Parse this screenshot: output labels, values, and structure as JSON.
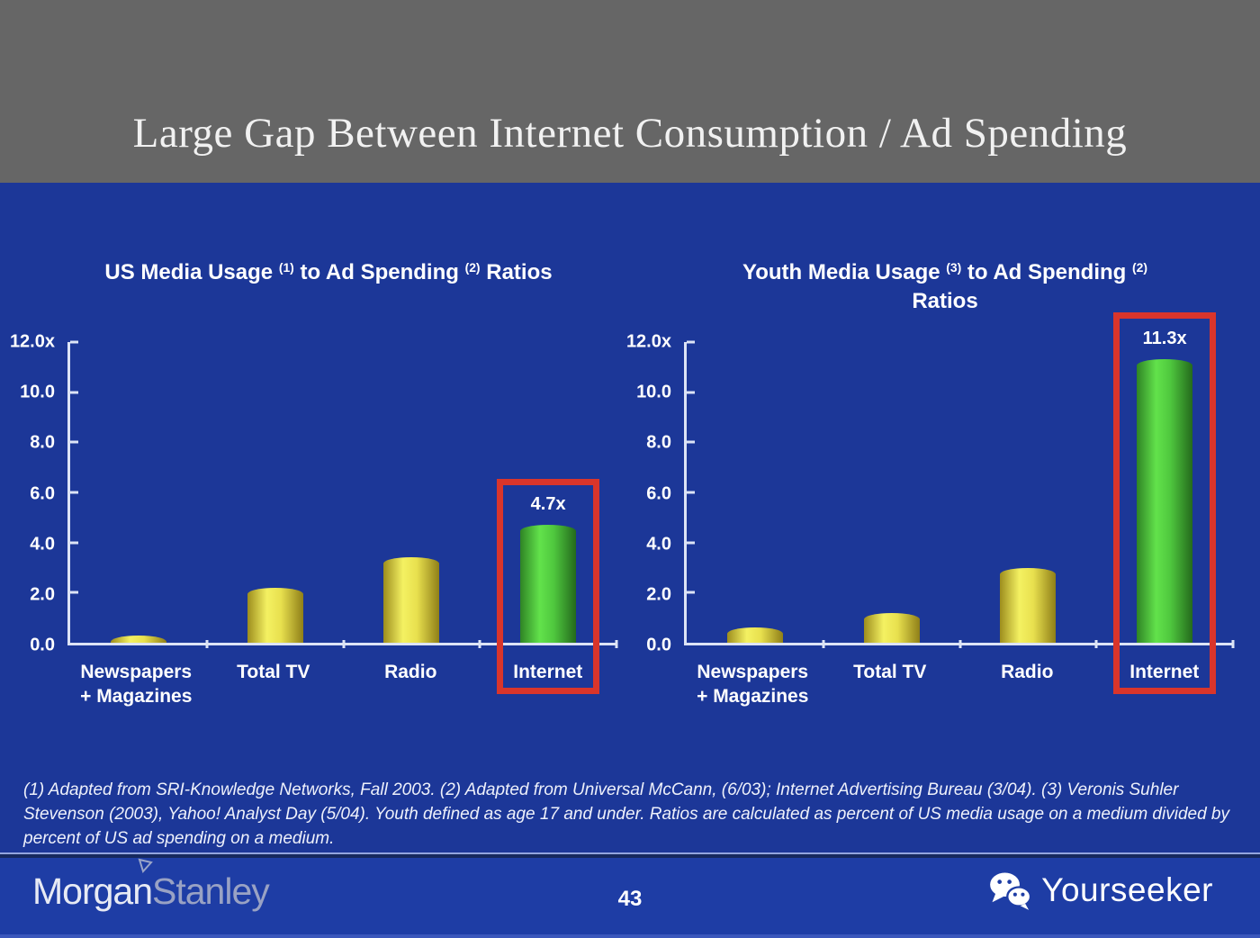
{
  "slide": {
    "title": "Large Gap Between Internet Consumption / Ad Spending",
    "page_number": "43"
  },
  "footnote": "(1) Adapted from SRI-Knowledge Networks, Fall 2003.  (2) Adapted from Universal McCann, (6/03); Internet Advertising Bureau (3/04). (3) Veronis Suhler Stevenson (2003), Yahoo! Analyst Day (5/04).  Youth defined as age 17 and under.  Ratios are calculated as percent of US media usage on a medium divided by percent of US ad spending on a medium.",
  "footer": {
    "brand_part1": "Morgan",
    "brand_part2": "Stanley",
    "watermark_label": "Yourseeker",
    "watermark_icon": "wechat-icon"
  },
  "colors": {
    "header_bg": "#666666",
    "slide_bg": "#1c3798",
    "footer_bg": "#1e3da5",
    "accent_red": "#d9352b",
    "axis": "#dde4f6",
    "bar_yellow": "#f4f162",
    "bar_green": "#62e24b"
  },
  "chart_data": [
    {
      "type": "bar",
      "title_parts": [
        "US Media Usage ",
        "(1)",
        " to Ad Spending ",
        "(2)",
        " Ratios"
      ],
      "title_line2": "",
      "categories": [
        [
          "Newspapers",
          "+ Magazines"
        ],
        [
          "Total TV"
        ],
        [
          "Radio"
        ],
        [
          "Internet"
        ]
      ],
      "values": [
        0.3,
        2.2,
        3.4,
        4.7
      ],
      "bar_colors": [
        "yellow",
        "yellow",
        "yellow",
        "green"
      ],
      "ylim": [
        0,
        12
      ],
      "ytick_labels": [
        "12.0x",
        "10.0",
        "8.0",
        "6.0",
        "4.0",
        "2.0",
        "0.0"
      ],
      "xlabel": "",
      "ylabel": "",
      "grid": false,
      "legend": "none",
      "annotations": {
        "highlight_index": 3,
        "value_label": "4.7x",
        "highlight_box_color": "#d9352b"
      }
    },
    {
      "type": "bar",
      "title_parts": [
        "Youth Media Usage ",
        "(3)",
        " to Ad Spending ",
        "(2)"
      ],
      "title_line2": "Ratios",
      "categories": [
        [
          "Newspapers",
          "+ Magazines"
        ],
        [
          "Total TV"
        ],
        [
          "Radio"
        ],
        [
          "Internet"
        ]
      ],
      "values": [
        0.6,
        1.2,
        3.0,
        11.3
      ],
      "bar_colors": [
        "yellow",
        "yellow",
        "yellow",
        "green"
      ],
      "ylim": [
        0,
        12
      ],
      "ytick_labels": [
        "12.0x",
        "10.0",
        "8.0",
        "6.0",
        "4.0",
        "2.0",
        "0.0"
      ],
      "xlabel": "",
      "ylabel": "",
      "grid": false,
      "legend": "none",
      "annotations": {
        "highlight_index": 3,
        "value_label": "11.3x",
        "highlight_box_color": "#d9352b"
      }
    }
  ]
}
